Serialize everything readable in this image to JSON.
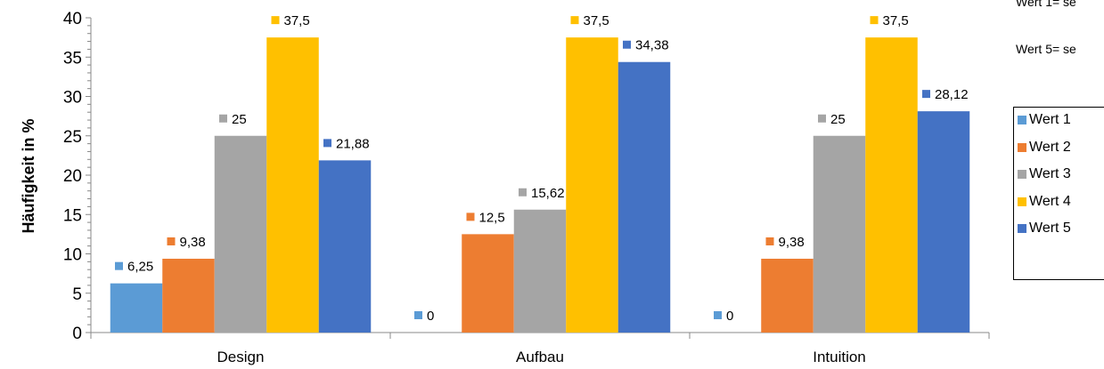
{
  "notes": [
    "Wert 1= se",
    "Wert 5= se"
  ],
  "chart_data": {
    "type": "bar",
    "title": "",
    "xlabel": "",
    "ylabel": "Häufigkeit in %",
    "ylim": [
      0,
      40
    ],
    "yticks": [
      "0",
      "5",
      "10",
      "15",
      "20",
      "25",
      "30",
      "35",
      "40"
    ],
    "categories": [
      "Design",
      "Aufbau",
      "Intuition"
    ],
    "series": [
      {
        "name": "Wert 1",
        "color": "#5B9BD5",
        "values": [
          6.25,
          0,
          0
        ],
        "labels": [
          "6,25",
          "0",
          "0"
        ]
      },
      {
        "name": "Wert 2",
        "color": "#ED7D31",
        "values": [
          9.38,
          12.5,
          9.38
        ],
        "labels": [
          "9,38",
          "12,5",
          "9,38"
        ]
      },
      {
        "name": "Wert 3",
        "color": "#A5A5A5",
        "values": [
          25,
          15.62,
          25
        ],
        "labels": [
          "25",
          "15,62",
          "25"
        ]
      },
      {
        "name": "Wert 4",
        "color": "#FFC000",
        "values": [
          37.5,
          37.5,
          37.5
        ],
        "labels": [
          "37,5",
          "37,5",
          "37,5"
        ]
      },
      {
        "name": "Wert 5",
        "color": "#4472C4",
        "values": [
          21.88,
          34.38,
          28.12
        ],
        "labels": [
          "21,88",
          "34,38",
          "28,12"
        ]
      }
    ],
    "legend": "right",
    "grid": false
  }
}
